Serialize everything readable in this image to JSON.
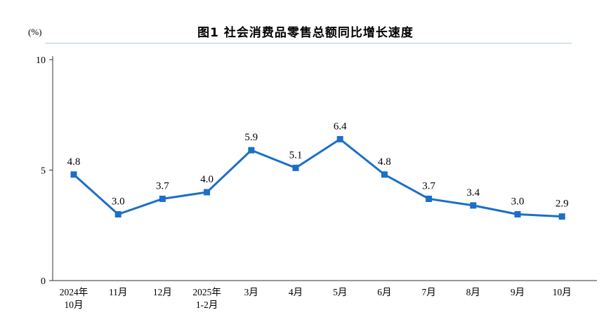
{
  "title": "图1 社会消费品零售总额同比增长速度",
  "unit_label": "(%)",
  "chart_data": {
    "type": "line",
    "title": "图1 社会消费品零售总额同比增长速度",
    "ylabel": "(%)",
    "xlabel": "",
    "categories": [
      "2024年\n10月",
      "11月",
      "12月",
      "2025年\n1-2月",
      "3月",
      "4月",
      "5月",
      "6月",
      "7月",
      "8月",
      "9月",
      "10月"
    ],
    "values": [
      4.8,
      3.0,
      3.7,
      4.0,
      5.9,
      5.1,
      6.4,
      4.8,
      3.7,
      3.4,
      3.0,
      2.9
    ],
    "ylim": [
      0,
      10
    ],
    "yticks": [
      0,
      5,
      10
    ],
    "grid": false,
    "legend": false,
    "line_color": "#1b6fc7",
    "marker": "square",
    "axis_color": "#333333",
    "label_color": "#000000"
  }
}
